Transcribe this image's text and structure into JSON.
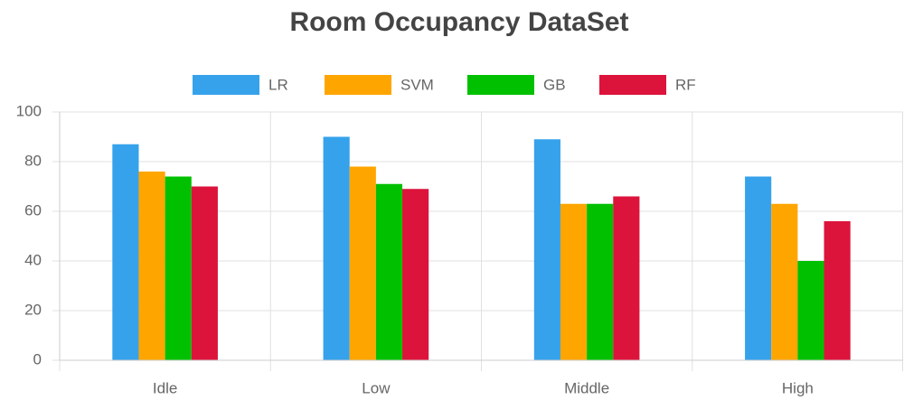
{
  "chart_data": {
    "type": "bar",
    "title": "Room Occupancy DataSet",
    "categories": [
      "Idle",
      "Low",
      "Middle",
      "High"
    ],
    "series": [
      {
        "name": "LR",
        "color": "#36a2eb",
        "values": [
          87,
          90,
          89,
          74
        ]
      },
      {
        "name": "SVM",
        "color": "#ffa500",
        "values": [
          76,
          78,
          63,
          63
        ]
      },
      {
        "name": "GB",
        "color": "#00c000",
        "values": [
          74,
          71,
          63,
          40
        ]
      },
      {
        "name": "RF",
        "color": "#dc143c",
        "values": [
          70,
          69,
          66,
          56
        ]
      }
    ],
    "ylim": [
      0,
      100
    ],
    "yticks": [
      0,
      20,
      40,
      60,
      80,
      100
    ],
    "grid": true,
    "legend": "top"
  }
}
